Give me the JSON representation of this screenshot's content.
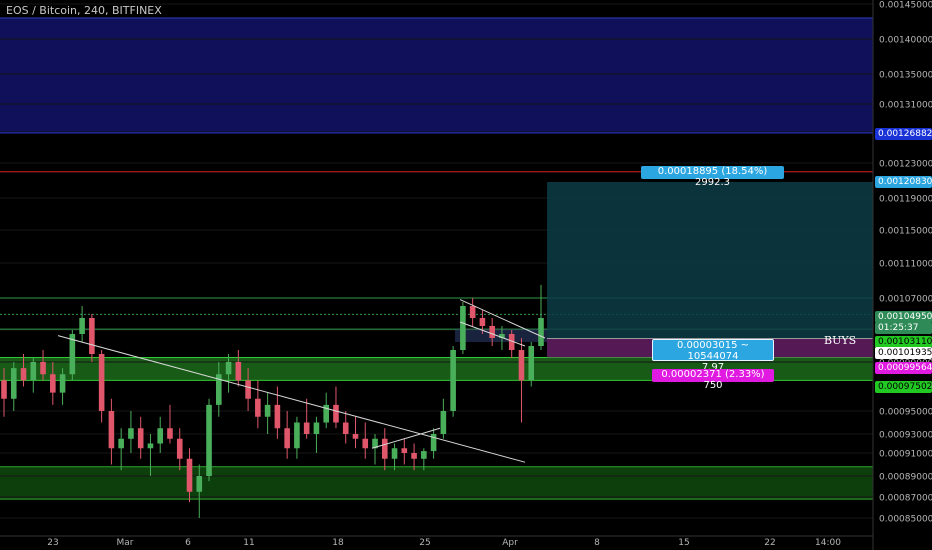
{
  "chart_title": "EOS / Bitcoin, 240, BITFINEX",
  "colors": {
    "background": "#000000",
    "bull_candle": "#4aaf5a",
    "bear_candle": "#e0566a",
    "support_zone": "#1f7a1f",
    "resistance_zone": "#0f0f5a",
    "target_zone": "#0d3c47",
    "stop_zone": "#6a1f6a",
    "accent_blue": "#2ca6e0",
    "accent_magenta": "#e01ae0"
  },
  "annotations": {
    "buys_label": "BUYS",
    "target_box": "0.00018895 (18.54%) 2992.3",
    "entry_box_line1": "0.00003015 ~ 10544074",
    "entry_box_line2": "7.97",
    "stop_box": "0.00002371 (2.33%) 750"
  },
  "price_tags": [
    {
      "label": "0.00126882",
      "bg": "#1a33d6",
      "fg": "#ffffff"
    },
    {
      "label": "0.00120830",
      "bg": "#2ca6e0",
      "fg": "#ffffff"
    },
    {
      "label": "0.00104950",
      "bg": "#2e8b57",
      "fg": "#ffffff"
    },
    {
      "label": "01:25:37",
      "bg": "#2e8b57",
      "fg": "#ffffff"
    },
    {
      "label": "0.00103110",
      "bg": "#22c922",
      "fg": "#000000"
    },
    {
      "label": "0.00101935",
      "bg": "#ffffff",
      "fg": "#000000"
    },
    {
      "label": "0.00099564",
      "bg": "#e01ae0",
      "fg": "#ffffff"
    },
    {
      "label": "0.00097502",
      "bg": "#22c922",
      "fg": "#000000"
    }
  ],
  "chart_data": {
    "type": "candlestick",
    "title": "EOS / Bitcoin, 240, BITFINEX",
    "y_axis": {
      "ticks": [
        "0.00145000",
        "0.00140000",
        "0.00135000",
        "0.00131000",
        "0.00127000",
        "0.00123000",
        "0.00119000",
        "0.00115000",
        "0.00111000",
        "0.00107000",
        "0.00103000",
        "0.00099000",
        "0.00095000",
        "0.00093000",
        "0.00091000",
        "0.00089000",
        "0.00087000",
        "0.00085000"
      ],
      "range": [
        0.00083,
        0.00147
      ]
    },
    "x_axis": {
      "ticks": [
        "23",
        "Mar",
        "6",
        "11",
        "18",
        "25",
        "Apr",
        "8",
        "15",
        "22",
        "14:00"
      ]
    },
    "horizontal_levels": {
      "resistance_zone": [
        0.00126882,
        0.00143
      ],
      "red_line": 0.00122,
      "support_zone_upper": [
        0.00097502,
        0.00099564
      ],
      "support_zone_lower": [
        0.000868,
        0.000898
      ],
      "green_lines": [
        0.0010311,
        0.0010495,
        0.00107
      ]
    },
    "position": {
      "entry": 0.00101935,
      "target": 0.0012083,
      "stop": 0.00099564
    },
    "trend_lines": [
      {
        "from": [
          "22",
          0.001023
        ],
        "to": [
          "Apr",
          0.000902
        ]
      }
    ],
    "candles_approx": [
      [
        0.000975,
        0.000985,
        0.000945,
        0.00096
      ],
      [
        0.00096,
        0.00099,
        0.00095,
        0.000985
      ],
      [
        0.000985,
        0.001,
        0.00097,
        0.000975
      ],
      [
        0.000975,
        0.000995,
        0.000965,
        0.00099
      ],
      [
        0.00099,
        0.001005,
        0.000975,
        0.00098
      ],
      [
        0.00098,
        0.00099,
        0.000955,
        0.000965
      ],
      [
        0.000965,
        0.000985,
        0.000955,
        0.00098
      ],
      [
        0.00098,
        0.00103,
        0.000975,
        0.001025
      ],
      [
        0.001025,
        0.00106,
        0.001015,
        0.001045
      ],
      [
        0.001045,
        0.00105,
        0.00099,
        0.001
      ],
      [
        0.001,
        0.001005,
        0.00094,
        0.00095
      ],
      [
        0.00095,
        0.00096,
        0.0009,
        0.000915
      ],
      [
        0.000915,
        0.000935,
        0.000895,
        0.000925
      ],
      [
        0.000925,
        0.00095,
        0.00091,
        0.000935
      ],
      [
        0.000935,
        0.000945,
        0.000905,
        0.000915
      ],
      [
        0.000915,
        0.00093,
        0.00089,
        0.00092
      ],
      [
        0.00092,
        0.000945,
        0.00091,
        0.000935
      ],
      [
        0.000935,
        0.000955,
        0.00092,
        0.000925
      ],
      [
        0.000925,
        0.000935,
        0.000895,
        0.000905
      ],
      [
        0.000905,
        0.000915,
        0.000865,
        0.000875
      ],
      [
        0.000875,
        0.0009,
        0.00085,
        0.00089
      ],
      [
        0.00089,
        0.00096,
        0.000885,
        0.000955
      ],
      [
        0.000955,
        0.00099,
        0.000945,
        0.00098
      ],
      [
        0.00098,
        0.001,
        0.000965,
        0.00099
      ],
      [
        0.00099,
        0.001005,
        0.00097,
        0.000975
      ],
      [
        0.000975,
        0.000985,
        0.00095,
        0.00096
      ],
      [
        0.00096,
        0.000975,
        0.000935,
        0.000945
      ],
      [
        0.000945,
        0.000965,
        0.00093,
        0.000955
      ],
      [
        0.000955,
        0.00097,
        0.000925,
        0.000935
      ],
      [
        0.000935,
        0.00095,
        0.000905,
        0.000915
      ],
      [
        0.000915,
        0.000945,
        0.000905,
        0.00094
      ],
      [
        0.00094,
        0.00096,
        0.000925,
        0.00093
      ],
      [
        0.00093,
        0.000945,
        0.00091,
        0.00094
      ],
      [
        0.00094,
        0.000965,
        0.000935,
        0.000955
      ],
      [
        0.000955,
        0.00097,
        0.000935,
        0.00094
      ],
      [
        0.00094,
        0.00095,
        0.00092,
        0.00093
      ],
      [
        0.00093,
        0.000945,
        0.000915,
        0.000925
      ],
      [
        0.000925,
        0.00094,
        0.000905,
        0.000915
      ],
      [
        0.000915,
        0.00093,
        0.0009,
        0.000925
      ],
      [
        0.000925,
        0.000935,
        0.000895,
        0.000905
      ],
      [
        0.000905,
        0.00092,
        0.000895,
        0.000915
      ],
      [
        0.000915,
        0.000925,
        0.0009,
        0.00091
      ],
      [
        0.00091,
        0.00092,
        0.000895,
        0.000905
      ],
      [
        0.000905,
        0.000915,
        0.000895,
        0.000912
      ],
      [
        0.000912,
        0.000935,
        0.000905,
        0.00093
      ],
      [
        0.00093,
        0.00096,
        0.000925,
        0.00095
      ],
      [
        0.00095,
        0.00101,
        0.000945,
        0.001005
      ],
      [
        0.001005,
        0.001065,
        0.001,
        0.00106
      ],
      [
        0.00106,
        0.00107,
        0.001035,
        0.001045
      ],
      [
        0.001045,
        0.001055,
        0.001025,
        0.001035
      ],
      [
        0.001035,
        0.001045,
        0.00101,
        0.00102
      ],
      [
        0.00102,
        0.001035,
        0.001005,
        0.001025
      ],
      [
        0.001025,
        0.00103,
        0.000995,
        0.001005
      ],
      [
        0.001005,
        0.00102,
        0.00094,
        0.000975
      ],
      [
        0.000975,
        0.001015,
        0.00097,
        0.00101
      ],
      [
        0.00101,
        0.001085,
        0.001005,
        0.001045
      ]
    ]
  }
}
